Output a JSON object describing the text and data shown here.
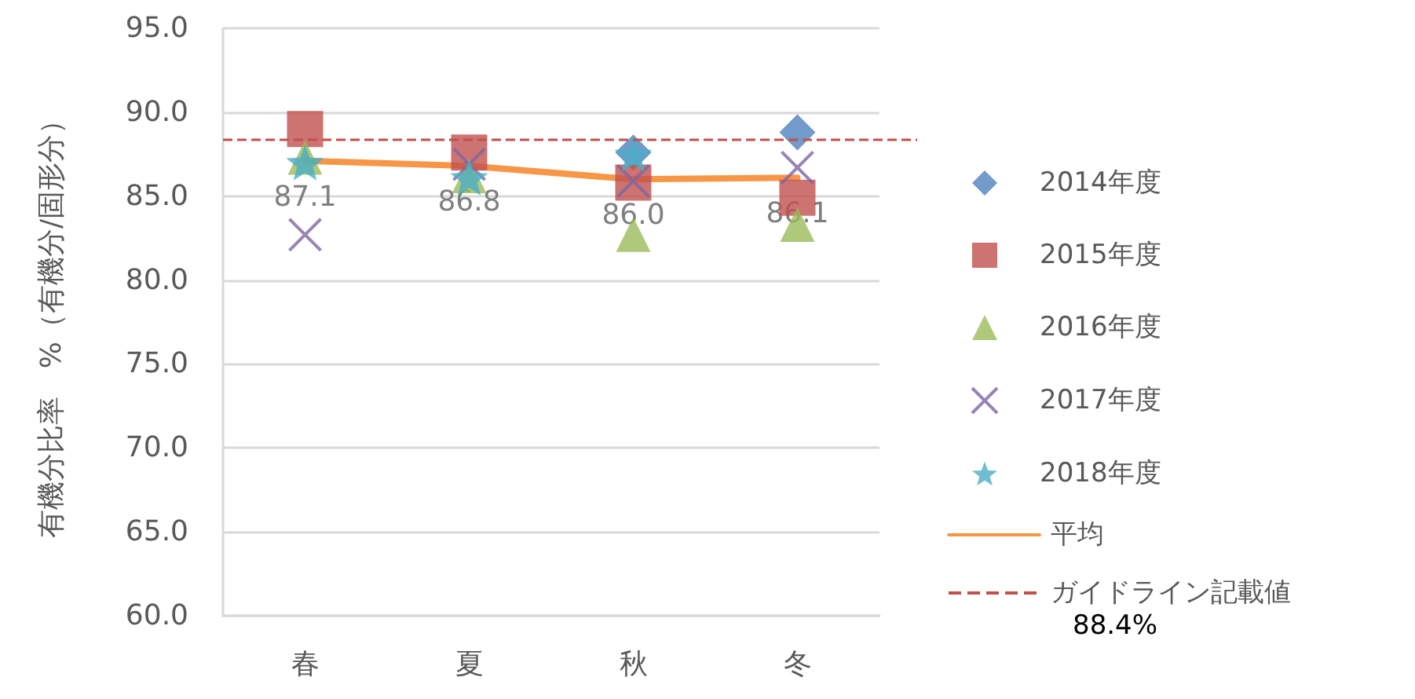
{
  "chart_data": {
    "type": "scatter",
    "ylabel": "有機分比率　%（有機分/固形分）",
    "categories": [
      "春",
      "夏",
      "秋",
      "冬"
    ],
    "series": [
      {
        "name": "2014年度",
        "color": "#4f81bd",
        "marker": "diamond",
        "values": [
          null,
          null,
          87.6,
          88.8
        ]
      },
      {
        "name": "2015年度",
        "color": "#c0504d",
        "marker": "square",
        "values": [
          89.0,
          87.6,
          85.8,
          84.9
        ]
      },
      {
        "name": "2016年度",
        "color": "#9bbb59",
        "marker": "triangle",
        "values": [
          87.3,
          86.2,
          82.7,
          83.3
        ]
      },
      {
        "name": "2017年度",
        "color": "#8064a2",
        "marker": "cross",
        "values": [
          82.7,
          86.9,
          85.9,
          86.7
        ]
      },
      {
        "name": "2018年度",
        "color": "#4bacc6",
        "marker": "star",
        "values": [
          87.0,
          86.1,
          87.5,
          null
        ]
      },
      {
        "name": "平均",
        "type": "line",
        "color": "#f79646",
        "marker": "none",
        "values": [
          87.1,
          86.8,
          86.0,
          86.1
        ],
        "value_labels": [
          "87.1",
          "86.8",
          "86.0",
          "86.1"
        ]
      }
    ],
    "ref_lines": [
      {
        "axis": "y",
        "value": 88.4,
        "label": "ガイドライン記載値",
        "color": "#c0504d",
        "line_style": "dashed"
      }
    ],
    "annotations": [
      "88.4%"
    ],
    "ylim": [
      60,
      95
    ],
    "yticks": [
      {
        "value": 60,
        "label": "60.0"
      },
      {
        "value": 65,
        "label": "65.0"
      },
      {
        "value": 70,
        "label": "70.0"
      },
      {
        "value": 75,
        "label": "75.0"
      },
      {
        "value": 80,
        "label": "80.0"
      },
      {
        "value": 85,
        "label": "85.0"
      },
      {
        "value": 90,
        "label": "90.0"
      },
      {
        "value": 95,
        "label": "95.0"
      }
    ],
    "grid": "y",
    "legend": "right"
  }
}
